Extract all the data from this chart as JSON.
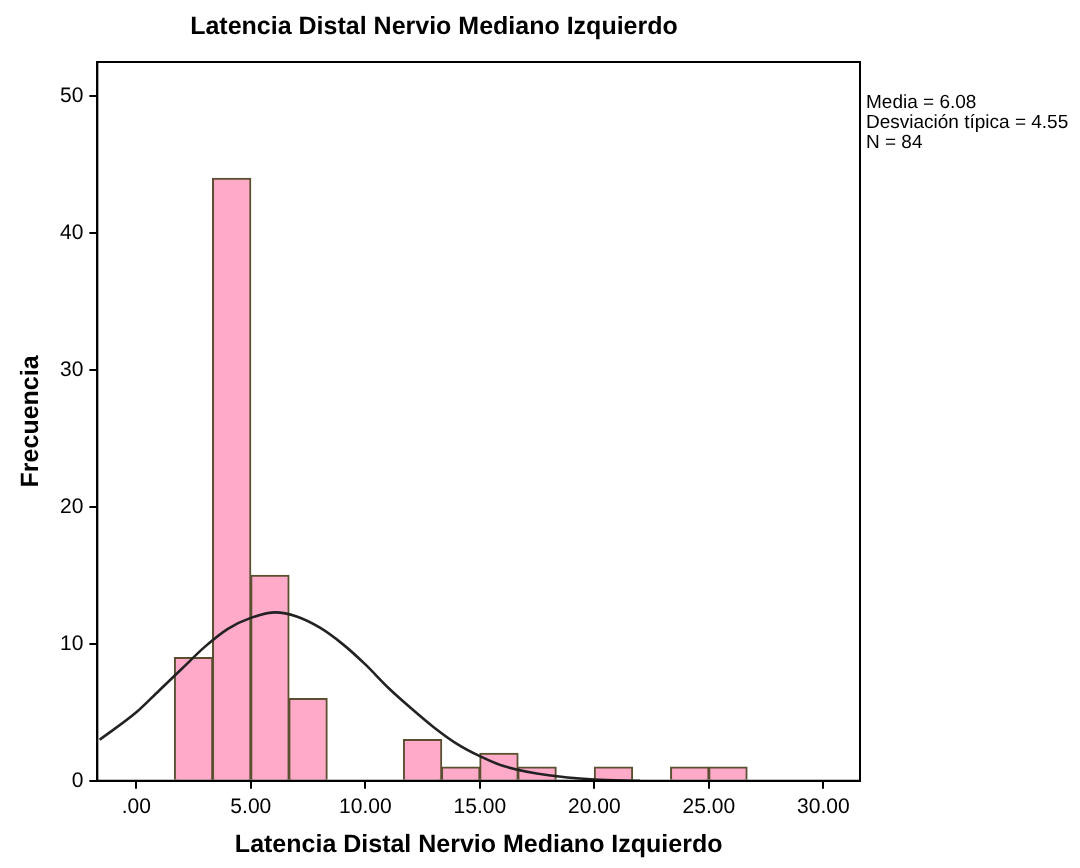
{
  "chart_data": {
    "type": "histogram",
    "title": "Latencia Distal Nervio Mediano Izquierdo",
    "xlabel": "Latencia Distal Nervio Mediano Izquierdo",
    "ylabel": "Frecuencia",
    "annotations": [
      "Media = 6.08",
      "Desviación típica = 4.55",
      "N = 84"
    ],
    "series": [
      {
        "color": "#ffaac9",
        "bins": [
          1.67,
          3.33,
          5,
          6.67,
          8.33,
          10,
          11.67,
          13.33,
          15,
          16.67,
          18.33,
          20,
          21.67,
          23.33,
          25,
          26.67
        ],
        "values": [
          9,
          44,
          15,
          6,
          0,
          0,
          3,
          1,
          2,
          1,
          0,
          1,
          0,
          1,
          1
        ]
      },
      {
        "type": "line",
        "color": "#222222",
        "x": [
          -1.6,
          0,
          1,
          2,
          3,
          4,
          5,
          6.08,
          7,
          8,
          9,
          10,
          11,
          12,
          13,
          14,
          15,
          16,
          18,
          20,
          22
        ],
        "values": [
          3,
          5,
          6.6,
          8.2,
          9.8,
          11.1,
          11.9,
          12.3,
          12,
          11.2,
          10,
          8.5,
          6.8,
          5.3,
          3.9,
          2.7,
          1.8,
          1.1,
          0.4,
          0.1,
          0
        ]
      }
    ],
    "xlim": [
      -1.7,
      31.6
    ],
    "xticks": [
      {
        "value": 0,
        "label": ".00"
      },
      {
        "value": 5,
        "label": "5.00"
      },
      {
        "value": 10,
        "label": "10.00"
      },
      {
        "value": 15,
        "label": "15.00"
      },
      {
        "value": 20,
        "label": "20.00"
      },
      {
        "value": 25,
        "label": "25.00"
      },
      {
        "value": 30,
        "label": "30.00"
      }
    ],
    "ylim": [
      0,
      52.5
    ],
    "yticks": [
      0,
      10,
      20,
      30,
      40,
      50
    ],
    "grid": false,
    "legend": false
  }
}
